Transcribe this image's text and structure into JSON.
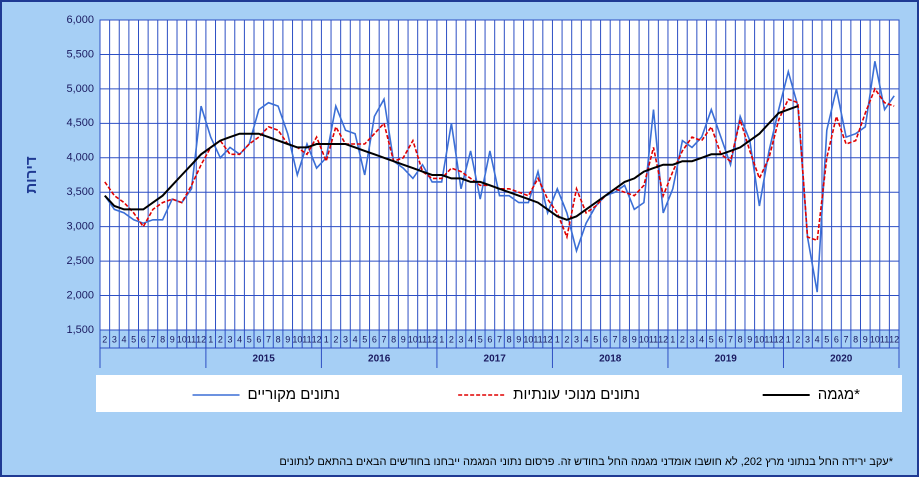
{
  "chart_data": {
    "type": "line",
    "y_label": "דירות",
    "footnote": "*עקב ירידה החל בנתוני מרץ 202, לא חושבו אומדני מגמה החל בחודש זה. פרסום נתוני המגמה ייבחנו בחודשים הבאים בהתאם לנתונים",
    "categories": [
      "2",
      "3",
      "4",
      "5",
      "6",
      "7",
      "8",
      "9",
      "10",
      "11",
      "12",
      "1",
      "2",
      "3",
      "4",
      "5",
      "6",
      "7",
      "8",
      "9",
      "10",
      "11",
      "12",
      "1",
      "2",
      "3",
      "4",
      "5",
      "6",
      "7",
      "8",
      "9",
      "10",
      "11",
      "12",
      "1",
      "2",
      "3",
      "4",
      "5",
      "6",
      "7",
      "8",
      "9",
      "10",
      "11",
      "12",
      "1",
      "2",
      "3",
      "4",
      "5",
      "6",
      "7",
      "8",
      "9",
      "10",
      "11",
      "12",
      "1",
      "2",
      "3",
      "4",
      "5",
      "6",
      "7",
      "8",
      "9",
      "10",
      "11",
      "12",
      "1",
      "2",
      "3",
      "4",
      "5",
      "6",
      "7",
      "8",
      "9",
      "10",
      "11",
      "12"
    ],
    "year_labels": [
      "2015",
      "2016",
      "2017",
      "2018",
      "2019",
      "2020"
    ],
    "ylim": [
      1500,
      6000
    ],
    "yticks": [
      {
        "value": 1500,
        "label": "1,500"
      },
      {
        "value": 2000,
        "label": "2,000"
      },
      {
        "value": 2500,
        "label": "2,500"
      },
      {
        "value": 3000,
        "label": "3,000"
      },
      {
        "value": 3500,
        "label": "3,500"
      },
      {
        "value": 4000,
        "label": "4,000"
      },
      {
        "value": 4500,
        "label": "4,500"
      },
      {
        "value": 5000,
        "label": "5,000"
      },
      {
        "value": 5500,
        "label": "5,500"
      },
      {
        "value": 6000,
        "label": "6,000"
      }
    ],
    "grid": true,
    "series": [
      {
        "name": "נתונים מקוריים",
        "color": "#3b6fd6",
        "style": "solid",
        "values": [
          3450,
          3250,
          3200,
          3100,
          3050,
          3100,
          3100,
          3400,
          3350,
          3550,
          4750,
          4300,
          4000,
          4150,
          4050,
          4200,
          4700,
          4800,
          4750,
          4350,
          3750,
          4200,
          3850,
          4000,
          4750,
          4400,
          4350,
          3750,
          4600,
          4850,
          3950,
          3850,
          3700,
          3900,
          3650,
          3650,
          4500,
          3550,
          4100,
          3400,
          4100,
          3450,
          3450,
          3350,
          3350,
          3800,
          3200,
          3550,
          3200,
          2650,
          3050,
          3300,
          3450,
          3500,
          3600,
          3250,
          3350,
          4700,
          3200,
          3550,
          4250,
          4150,
          4300,
          4700,
          4300,
          3900,
          4600,
          4250,
          3300,
          4100,
          4700,
          5250,
          4750,
          2850,
          2050,
          4400,
          5000,
          4300,
          4350,
          4450,
          5400,
          4700,
          4900
        ]
      },
      {
        "name": "נתונים מנוכי עונתיות",
        "color": "#e00000",
        "style": "dashed",
        "values": [
          3650,
          3450,
          3350,
          3200,
          3000,
          3250,
          3350,
          3400,
          3350,
          3600,
          3900,
          4150,
          4250,
          4050,
          4050,
          4200,
          4300,
          4450,
          4400,
          4200,
          4150,
          4050,
          4300,
          3950,
          4450,
          4200,
          4200,
          4200,
          4350,
          4500,
          3950,
          4000,
          4250,
          3800,
          3700,
          3700,
          3850,
          3800,
          3700,
          3600,
          3600,
          3550,
          3550,
          3500,
          3450,
          3700,
          3400,
          3200,
          2850,
          3550,
          3200,
          3300,
          3450,
          3550,
          3500,
          3450,
          3600,
          4150,
          3450,
          3800,
          4100,
          4300,
          4250,
          4450,
          4050,
          3950,
          4550,
          4100,
          3700,
          4000,
          4550,
          4850,
          4800,
          2850,
          2800,
          4000,
          4600,
          4200,
          4250,
          4650,
          5000,
          4800,
          4750
        ]
      },
      {
        "name": "מגמה*",
        "color": "#000000",
        "style": "thick",
        "values": [
          3450,
          3300,
          3250,
          3250,
          3250,
          3350,
          3450,
          3600,
          3750,
          3900,
          4050,
          4150,
          4250,
          4300,
          4350,
          4350,
          4350,
          4300,
          4250,
          4200,
          4150,
          4150,
          4200,
          4200,
          4200,
          4200,
          4150,
          4100,
          4050,
          4000,
          3950,
          3900,
          3850,
          3800,
          3750,
          3750,
          3700,
          3700,
          3650,
          3650,
          3600,
          3550,
          3500,
          3450,
          3400,
          3350,
          3250,
          3150,
          3100,
          3150,
          3250,
          3350,
          3450,
          3550,
          3650,
          3700,
          3800,
          3850,
          3900,
          3900,
          3950,
          3950,
          4000,
          4050,
          4050,
          4100,
          4150,
          4250,
          4350,
          4500,
          4650,
          4700,
          4750,
          null,
          null,
          null,
          null,
          null,
          null,
          null,
          null,
          null,
          null
        ]
      }
    ]
  }
}
